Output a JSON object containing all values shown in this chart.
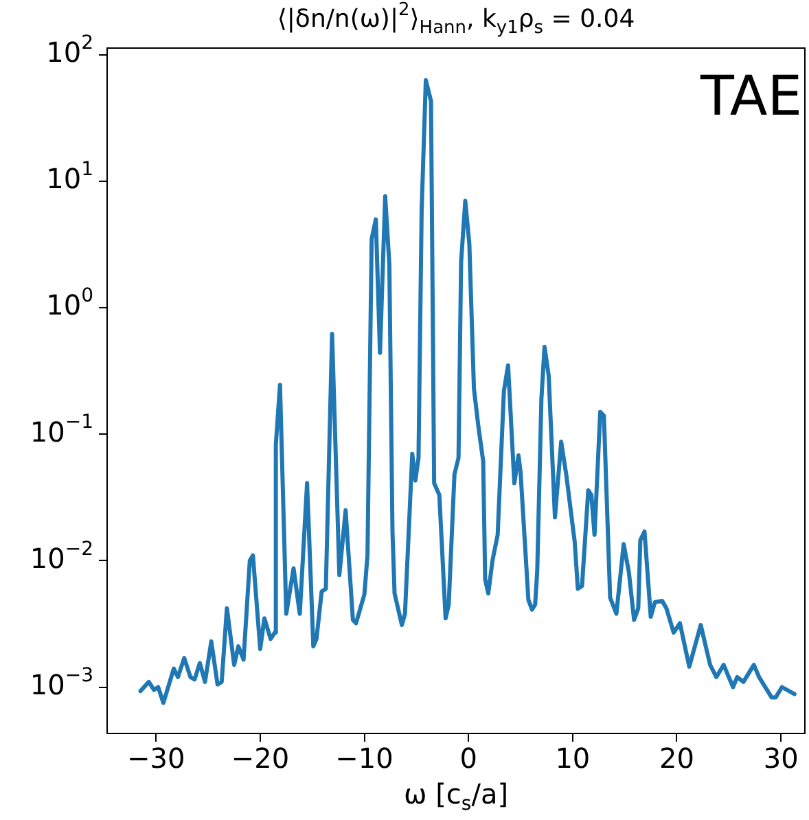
{
  "chart_data": {
    "type": "line",
    "title": "⟨|δn/n(ω)|$^{2}$⟩$_{Hann}$, k$_{y1}$ρ$_{s}$ = 0.04",
    "xlabel": "ω [c$_{s}$/a]",
    "annotations": [
      "TAE"
    ],
    "x": [
      -31.5,
      -30.7,
      -30.2,
      -29.8,
      -29.3,
      -28.3,
      -27.9,
      -27.3,
      -26.7,
      -26.3,
      -25.8,
      -25.3,
      -24.7,
      -24.1,
      -23.7,
      -23.2,
      -22.5,
      -22.1,
      -21.6,
      -21.0,
      -20.7,
      -20.0,
      -19.6,
      -19.0,
      -18.6,
      -18.5,
      -18.1,
      -17.5,
      -16.8,
      -16.2,
      -15.5,
      -14.9,
      -14.6,
      -14.1,
      -13.7,
      -13.1,
      -12.4,
      -11.8,
      -11.1,
      -10.8,
      -10.0,
      -9.7,
      -9.3,
      -8.9,
      -8.5,
      -8.0,
      -7.6,
      -7.3,
      -7.1,
      -6.4,
      -6.1,
      -5.4,
      -5.1,
      -4.8,
      -4.5,
      -4.1,
      -3.6,
      -3.3,
      -2.8,
      -2.2,
      -1.9,
      -1.35,
      -0.96,
      -0.71,
      -0.31,
      0.08,
      0.52,
      0.92,
      1.41,
      1.6,
      1.9,
      2.3,
      2.8,
      3.4,
      3.8,
      4.4,
      4.8,
      5.0,
      5.75,
      6.1,
      6.4,
      6.6,
      7.0,
      7.3,
      7.7,
      8.3,
      8.9,
      9.4,
      10.2,
      10.5,
      10.9,
      11.5,
      11.8,
      12.1,
      12.65,
      13.0,
      13.6,
      14.2,
      14.9,
      15.4,
      15.9,
      16.3,
      16.5,
      16.9,
      17.5,
      17.9,
      18.6,
      19.0,
      19.7,
      20.3,
      21.2,
      22.3,
      23.2,
      23.8,
      24.5,
      25.4,
      25.8,
      26.4,
      27.4,
      27.9,
      29.1,
      29.5,
      30.1,
      31.3
    ],
    "series": [
      {
        "color": "#1f77b4",
        "values": [
          0.00093,
          0.0011,
          0.00095,
          0.001,
          0.00075,
          0.0014,
          0.0012,
          0.0017,
          0.0012,
          0.00115,
          0.00155,
          0.0011,
          0.0023,
          0.00105,
          0.0011,
          0.0042,
          0.0015,
          0.0021,
          0.00165,
          0.01,
          0.011,
          0.002,
          0.0035,
          0.0024,
          0.0027,
          0.083,
          0.245,
          0.0038,
          0.0087,
          0.0038,
          0.041,
          0.0021,
          0.0024,
          0.0057,
          0.006,
          0.62,
          0.0077,
          0.025,
          0.0034,
          0.0032,
          0.0054,
          0.011,
          3.5,
          5.0,
          0.44,
          7.6,
          2.2,
          0.017,
          0.0055,
          0.0031,
          0.0038,
          0.07,
          0.043,
          0.065,
          5.9,
          63,
          43,
          0.041,
          0.033,
          0.0035,
          0.0045,
          0.048,
          0.065,
          2.3,
          7.0,
          3.2,
          0.23,
          0.12,
          0.061,
          0.0071,
          0.0055,
          0.01,
          0.016,
          0.22,
          0.35,
          0.041,
          0.068,
          0.05,
          0.0049,
          0.0041,
          0.0045,
          0.0083,
          0.19,
          0.49,
          0.29,
          0.022,
          0.087,
          0.047,
          0.014,
          0.006,
          0.0063,
          0.036,
          0.033,
          0.016,
          0.15,
          0.14,
          0.0051,
          0.0038,
          0.0135,
          0.0081,
          0.0034,
          0.0042,
          0.0145,
          0.017,
          0.0036,
          0.0047,
          0.0048,
          0.0042,
          0.0027,
          0.0032,
          0.00145,
          0.0031,
          0.0015,
          0.0012,
          0.0015,
          0.001,
          0.0012,
          0.0011,
          0.0015,
          0.0012,
          0.00083,
          0.00083,
          0.001,
          0.00088
        ]
      }
    ],
    "log": "y",
    "xlim": [
      -34.7,
      32.3
    ],
    "ylim": [
      0.00043,
      113
    ],
    "xticks": [
      {
        "value": -30,
        "label": "−30"
      },
      {
        "value": -20,
        "label": "−20"
      },
      {
        "value": -10,
        "label": "−10"
      },
      0,
      10,
      20,
      30
    ],
    "yticks": [
      {
        "value": 0.001,
        "label": "10$^{−3}$"
      },
      {
        "value": 0.01,
        "label": "10$^{−2}$"
      },
      {
        "value": 0.1,
        "label": "10$^{−1}$"
      },
      {
        "value": 1,
        "label": "10$^{0}$"
      },
      {
        "value": 10,
        "label": "10$^{1}$"
      },
      {
        "value": 100,
        "label": "10$^{2}$"
      }
    ],
    "grid": false,
    "legend": false,
    "marker": "none",
    "line_style": "solid"
  }
}
